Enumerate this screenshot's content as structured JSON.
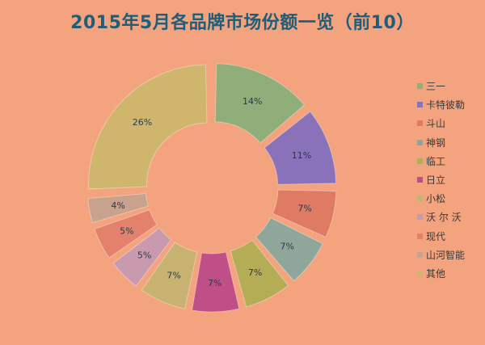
{
  "chart_data": {
    "type": "pie",
    "title": "2015年5月各品牌市场份额一览（前10）",
    "categories": [
      "三一",
      "卡特彼勒",
      "斗山",
      "神钢",
      "临工",
      "日立",
      "小松",
      "沃 尔 沃",
      "现代",
      "山河智能",
      "其他"
    ],
    "values": [
      14,
      11,
      7,
      7,
      7,
      7,
      7,
      5,
      5,
      4,
      26
    ],
    "labels": [
      "14%",
      "11%",
      "7%",
      "7%",
      "7%",
      "7%",
      "7%",
      "5%",
      "5%",
      "4%",
      "26%"
    ],
    "colors": [
      "#8fae7a",
      "#8a72bb",
      "#df7a63",
      "#8fa79a",
      "#b5ad56",
      "#bf4f86",
      "#c8b271",
      "#c99aae",
      "#e3816d",
      "#c9a28d",
      "#cfb66c"
    ],
    "legend_position": "right",
    "donut": true,
    "exploded": true
  }
}
